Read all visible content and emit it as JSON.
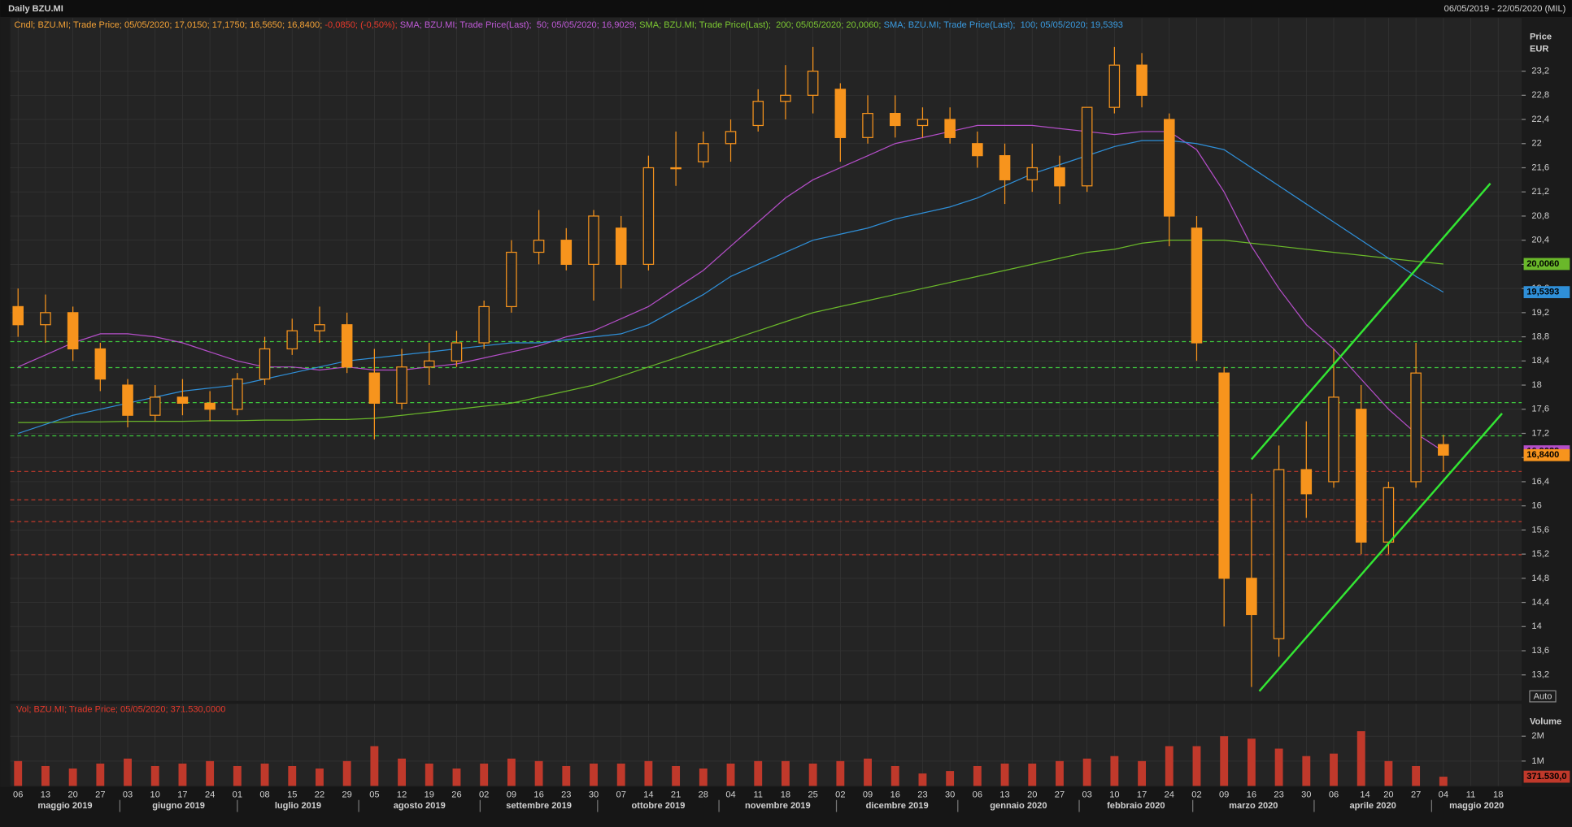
{
  "chart_data": [
    {
      "type": "candlestick",
      "title": "Daily BZU.MI",
      "subtitle": "06/05/2019 - 22/05/2020 (MIL)",
      "ylabel": "Price",
      "yunit": "EUR",
      "button": "Auto",
      "legend_segments": [
        {
          "text": "Cndl; BZU.MI; Trade Price; 05/05/2020; 17,0150; 17,1750; 16,5650; 16,8400; ",
          "color": "#f4a236"
        },
        {
          "text": "-0,0850; (-0,50%);",
          "color": "#e8392b"
        },
        {
          "text": " SMA; BZU.MI; Trade Price(Last);  50; 05/05/2020; 16,9029;",
          "color": "#c05ad8"
        },
        {
          "text": " SMA; BZU.MI; Trade Price(Last);  200; 05/05/2020; 20,0060;",
          "color": "#7cc832"
        },
        {
          "text": " SMA; BZU.MI; Trade Price(Last);  100; 05/05/2020; 19,5393",
          "color": "#3a9be0"
        }
      ],
      "x": [
        "2019-05-06",
        "2019-05-13",
        "2019-05-20",
        "2019-05-27",
        "2019-06-03",
        "2019-06-10",
        "2019-06-17",
        "2019-06-24",
        "2019-07-01",
        "2019-07-08",
        "2019-07-15",
        "2019-07-22",
        "2019-07-29",
        "2019-08-05",
        "2019-08-12",
        "2019-08-19",
        "2019-08-26",
        "2019-09-02",
        "2019-09-09",
        "2019-09-16",
        "2019-09-23",
        "2019-09-30",
        "2019-10-07",
        "2019-10-14",
        "2019-10-21",
        "2019-10-28",
        "2019-11-04",
        "2019-11-11",
        "2019-11-18",
        "2019-11-25",
        "2019-12-02",
        "2019-12-09",
        "2019-12-16",
        "2019-12-23",
        "2019-12-30",
        "2020-01-06",
        "2020-01-13",
        "2020-01-20",
        "2020-01-27",
        "2020-02-03",
        "2020-02-10",
        "2020-02-17",
        "2020-02-24",
        "2020-03-02",
        "2020-03-09",
        "2020-03-16",
        "2020-03-23",
        "2020-03-30",
        "2020-04-06",
        "2020-04-13",
        "2020-04-20",
        "2020-04-27",
        "2020-05-04"
      ],
      "open": [
        19.3,
        19.0,
        19.2,
        18.6,
        18.0,
        17.5,
        17.8,
        17.7,
        17.6,
        18.1,
        18.6,
        18.9,
        19.0,
        18.2,
        17.7,
        18.3,
        18.4,
        18.7,
        19.3,
        20.2,
        20.4,
        20.0,
        20.6,
        20.0,
        21.6,
        21.7,
        22.0,
        22.3,
        22.7,
        22.8,
        22.9,
        22.1,
        22.5,
        22.3,
        22.4,
        22.0,
        21.8,
        21.4,
        21.6,
        21.3,
        22.6,
        23.3,
        22.4,
        20.6,
        18.2,
        14.8,
        13.8,
        16.6,
        16.4,
        17.6,
        15.4,
        16.4,
        17.015
      ],
      "high": [
        19.6,
        19.5,
        19.3,
        18.7,
        18.1,
        18.0,
        18.1,
        17.9,
        18.2,
        18.8,
        19.1,
        19.3,
        19.2,
        18.6,
        18.6,
        18.7,
        18.9,
        19.4,
        20.4,
        20.9,
        20.6,
        20.9,
        20.8,
        21.8,
        22.2,
        22.2,
        22.4,
        22.9,
        23.3,
        23.6,
        23.0,
        22.8,
        22.8,
        22.6,
        22.6,
        22.2,
        22.0,
        22.0,
        21.8,
        22.6,
        23.6,
        23.5,
        22.5,
        20.8,
        18.3,
        16.2,
        17.0,
        17.4,
        18.6,
        18.0,
        16.4,
        18.7,
        17.175
      ],
      "low": [
        18.8,
        18.7,
        18.4,
        17.9,
        17.3,
        17.4,
        17.5,
        17.4,
        17.5,
        18.0,
        18.5,
        18.7,
        18.2,
        17.1,
        17.6,
        18.0,
        18.3,
        18.6,
        19.2,
        20.0,
        19.9,
        19.4,
        19.6,
        19.9,
        21.3,
        21.6,
        21.7,
        22.2,
        22.4,
        22.5,
        21.7,
        22.0,
        22.1,
        22.1,
        22.0,
        21.6,
        21.0,
        21.2,
        21.0,
        21.2,
        22.5,
        22.6,
        20.3,
        18.4,
        14.0,
        13.0,
        13.5,
        15.8,
        16.3,
        15.2,
        15.2,
        16.3,
        16.565
      ],
      "close": [
        19.0,
        19.2,
        18.6,
        18.1,
        17.5,
        17.8,
        17.7,
        17.6,
        18.1,
        18.6,
        18.9,
        19.0,
        18.3,
        17.7,
        18.3,
        18.4,
        18.7,
        19.3,
        20.2,
        20.4,
        20.0,
        20.8,
        20.0,
        21.6,
        21.6,
        22.0,
        22.2,
        22.7,
        22.8,
        23.2,
        22.1,
        22.5,
        22.3,
        22.4,
        22.1,
        21.8,
        21.4,
        21.6,
        21.3,
        22.6,
        23.3,
        22.8,
        20.8,
        18.7,
        14.8,
        14.2,
        16.6,
        16.2,
        17.8,
        15.4,
        16.3,
        18.2,
        16.84
      ],
      "color": "#f7941d",
      "close_label": "16,8400",
      "lines": [
        {
          "color": "#b44ec8",
          "value_label": "16,9029",
          "values": [
            18.3,
            18.5,
            18.7,
            18.85,
            18.85,
            18.8,
            18.7,
            18.55,
            18.4,
            18.3,
            18.3,
            18.25,
            18.3,
            18.25,
            18.25,
            18.3,
            18.35,
            18.45,
            18.55,
            18.65,
            18.8,
            18.9,
            19.1,
            19.3,
            19.6,
            19.9,
            20.3,
            20.7,
            21.1,
            21.4,
            21.6,
            21.8,
            22.0,
            22.1,
            22.2,
            22.3,
            22.3,
            22.3,
            22.25,
            22.2,
            22.15,
            22.2,
            22.2,
            21.9,
            21.2,
            20.3,
            19.6,
            19.0,
            18.6,
            18.1,
            17.6,
            17.2,
            16.9029
          ]
        },
        {
          "color": "#6ab82a",
          "value_label": "20,0060",
          "values": [
            17.38,
            17.38,
            17.39,
            17.39,
            17.4,
            17.4,
            17.4,
            17.41,
            17.41,
            17.42,
            17.42,
            17.43,
            17.43,
            17.45,
            17.5,
            17.55,
            17.6,
            17.65,
            17.7,
            17.8,
            17.9,
            18.0,
            18.15,
            18.3,
            18.45,
            18.6,
            18.75,
            18.9,
            19.05,
            19.2,
            19.3,
            19.4,
            19.5,
            19.6,
            19.7,
            19.8,
            19.9,
            20.0,
            20.1,
            20.2,
            20.25,
            20.35,
            20.4,
            20.4,
            20.4,
            20.35,
            20.3,
            20.25,
            20.2,
            20.15,
            20.1,
            20.05,
            20.006
          ]
        },
        {
          "color": "#2f8fd8",
          "value_label": "19,5393",
          "values": [
            17.2,
            17.35,
            17.5,
            17.6,
            17.7,
            17.8,
            17.9,
            17.95,
            18.0,
            18.1,
            18.2,
            18.3,
            18.4,
            18.45,
            18.5,
            18.55,
            18.6,
            18.65,
            18.7,
            18.7,
            18.75,
            18.8,
            18.85,
            19.0,
            19.25,
            19.5,
            19.8,
            20.0,
            20.2,
            20.4,
            20.5,
            20.6,
            20.75,
            20.85,
            20.95,
            21.1,
            21.3,
            21.5,
            21.65,
            21.8,
            21.95,
            22.05,
            22.05,
            22.0,
            21.9,
            21.6,
            21.3,
            21.0,
            20.7,
            20.4,
            20.1,
            19.8,
            19.5393
          ]
        }
      ],
      "hlines": [
        {
          "value": 18.72,
          "color": "#3ec83e"
        },
        {
          "value": 18.29,
          "color": "#3ec83e"
        },
        {
          "value": 17.71,
          "color": "#3ec83e"
        },
        {
          "value": 17.16,
          "color": "#3ec83e"
        },
        {
          "value": 16.57,
          "color": "#c0392b"
        },
        {
          "value": 16.1,
          "color": "#c0392b"
        },
        {
          "value": 15.74,
          "color": "#c0392b"
        },
        {
          "value": 15.19,
          "color": "#c0392b"
        }
      ],
      "trendlines": [
        {
          "color": "#33e633",
          "x": [
            "2020-03-16",
            "2020-05-16"
          ],
          "y": [
            16.77,
            21.34
          ]
        },
        {
          "color": "#33e633",
          "x": [
            "2020-03-18",
            "2020-05-19"
          ],
          "y": [
            12.93,
            17.53
          ]
        }
      ],
      "xlim": [
        "2019-05-04",
        "2020-05-24"
      ],
      "ylim": [
        12.77,
        24.08
      ],
      "grid": true,
      "yticks": [
        {
          "value": 13.2,
          "label": "13,2"
        },
        {
          "value": 13.6,
          "label": "13,6"
        },
        14,
        {
          "value": 14.4,
          "label": "14,4"
        },
        {
          "value": 14.8,
          "label": "14,8"
        },
        {
          "value": 15.2,
          "label": "15,2"
        },
        {
          "value": 15.6,
          "label": "15,6"
        },
        16,
        {
          "value": 16.4,
          "label": "16,4"
        },
        {
          "value": 16.8,
          "label": "16,8"
        },
        {
          "value": 17.2,
          "label": "17,2"
        },
        {
          "value": 17.6,
          "label": "17,6"
        },
        18,
        {
          "value": 18.4,
          "label": "18,4"
        },
        {
          "value": 18.8,
          "label": "18,8"
        },
        {
          "value": 19.2,
          "label": "19,2"
        },
        {
          "value": 19.6,
          "label": "19,6"
        },
        20,
        {
          "value": 20.4,
          "label": "20,4"
        },
        {
          "value": 20.8,
          "label": "20,8"
        },
        {
          "value": 21.2,
          "label": "21,2"
        },
        {
          "value": 21.6,
          "label": "21,6"
        },
        22,
        {
          "value": 22.4,
          "label": "22,4"
        },
        {
          "value": 22.8,
          "label": "22,8"
        },
        {
          "value": 23.2,
          "label": "23,2"
        }
      ],
      "xticks": [
        {
          "value": "2019-05-06",
          "label": "06"
        },
        {
          "value": "2019-05-13",
          "label": "13"
        },
        {
          "value": "2019-05-20",
          "label": "20"
        },
        {
          "value": "2019-05-27",
          "label": "27"
        },
        {
          "value": "2019-06-03",
          "label": "03"
        },
        {
          "value": "2019-06-10",
          "label": "10"
        },
        {
          "value": "2019-06-17",
          "label": "17"
        },
        {
          "value": "2019-06-24",
          "label": "24"
        },
        {
          "value": "2019-07-01",
          "label": "01"
        },
        {
          "value": "2019-07-08",
          "label": "08"
        },
        {
          "value": "2019-07-15",
          "label": "15"
        },
        {
          "value": "2019-07-22",
          "label": "22"
        },
        {
          "value": "2019-07-29",
          "label": "29"
        },
        {
          "value": "2019-08-05",
          "label": "05"
        },
        {
          "value": "2019-08-12",
          "label": "12"
        },
        {
          "value": "2019-08-19",
          "label": "19"
        },
        {
          "value": "2019-08-26",
          "label": "26"
        },
        {
          "value": "2019-09-02",
          "label": "02"
        },
        {
          "value": "2019-09-09",
          "label": "09"
        },
        {
          "value": "2019-09-16",
          "label": "16"
        },
        {
          "value": "2019-09-23",
          "label": "23"
        },
        {
          "value": "2019-09-30",
          "label": "30"
        },
        {
          "value": "2019-10-07",
          "label": "07"
        },
        {
          "value": "2019-10-14",
          "label": "14"
        },
        {
          "value": "2019-10-21",
          "label": "21"
        },
        {
          "value": "2019-10-28",
          "label": "28"
        },
        {
          "value": "2019-11-04",
          "label": "04"
        },
        {
          "value": "2019-11-11",
          "label": "11"
        },
        {
          "value": "2019-11-18",
          "label": "18"
        },
        {
          "value": "2019-11-25",
          "label": "25"
        },
        {
          "value": "2019-12-02",
          "label": "02"
        },
        {
          "value": "2019-12-09",
          "label": "09"
        },
        {
          "value": "2019-12-16",
          "label": "16"
        },
        {
          "value": "2019-12-23",
          "label": "23"
        },
        {
          "value": "2019-12-30",
          "label": "30"
        },
        {
          "value": "2020-01-06",
          "label": "06"
        },
        {
          "value": "2020-01-13",
          "label": "13"
        },
        {
          "value": "2020-01-20",
          "label": "20"
        },
        {
          "value": "2020-01-27",
          "label": "27"
        },
        {
          "value": "2020-02-03",
          "label": "03"
        },
        {
          "value": "2020-02-10",
          "label": "10"
        },
        {
          "value": "2020-02-17",
          "label": "17"
        },
        {
          "value": "2020-02-24",
          "label": "24"
        },
        {
          "value": "2020-03-02",
          "label": "02"
        },
        {
          "value": "2020-03-09",
          "label": "09"
        },
        {
          "value": "2020-03-16",
          "label": "16"
        },
        {
          "value": "2020-03-23",
          "label": "23"
        },
        {
          "value": "2020-03-30",
          "label": "30"
        },
        {
          "value": "2020-04-06",
          "label": "06"
        },
        {
          "value": "2020-04-14",
          "label": "14"
        },
        {
          "value": "2020-04-20",
          "label": "20"
        },
        {
          "value": "2020-04-27",
          "label": "27"
        },
        {
          "value": "2020-05-04",
          "label": "04"
        },
        {
          "value": "2020-05-11",
          "label": "11"
        },
        {
          "value": "2020-05-18",
          "label": "18"
        }
      ],
      "month_ticks": [
        {
          "value": "2019-05-01",
          "label": "maggio 2019"
        },
        {
          "value": "2019-06-01",
          "label": "giugno 2019"
        },
        {
          "value": "2019-07-01",
          "label": "luglio 2019"
        },
        {
          "value": "2019-08-01",
          "label": "agosto 2019"
        },
        {
          "value": "2019-09-01",
          "label": "settembre 2019"
        },
        {
          "value": "2019-10-01",
          "label": "ottobre 2019"
        },
        {
          "value": "2019-11-01",
          "label": "novembre 2019"
        },
        {
          "value": "2019-12-01",
          "label": "dicembre 2019"
        },
        {
          "value": "2020-01-01",
          "label": "gennaio 2020"
        },
        {
          "value": "2020-02-01",
          "label": "febbraio 2020"
        },
        {
          "value": "2020-03-01",
          "label": "marzo 2020"
        },
        {
          "value": "2020-04-01",
          "label": "aprile 2020"
        },
        {
          "value": "2020-05-01",
          "label": "maggio 2020"
        }
      ]
    },
    {
      "type": "bar",
      "legend": "Vol; BZU.MI; Trade Price; 05/05/2020; 371.530,0000",
      "legend_color": "#e8392b",
      "ylabel": "Volume",
      "color": "#c0392b",
      "value_label": "371.530,0",
      "x": [
        "2019-05-06",
        "2019-05-13",
        "2019-05-20",
        "2019-05-27",
        "2019-06-03",
        "2019-06-10",
        "2019-06-17",
        "2019-06-24",
        "2019-07-01",
        "2019-07-08",
        "2019-07-15",
        "2019-07-22",
        "2019-07-29",
        "2019-08-05",
        "2019-08-12",
        "2019-08-19",
        "2019-08-26",
        "2019-09-02",
        "2019-09-09",
        "2019-09-16",
        "2019-09-23",
        "2019-09-30",
        "2019-10-07",
        "2019-10-14",
        "2019-10-21",
        "2019-10-28",
        "2019-11-04",
        "2019-11-11",
        "2019-11-18",
        "2019-11-25",
        "2019-12-02",
        "2019-12-09",
        "2019-12-16",
        "2019-12-23",
        "2019-12-30",
        "2020-01-06",
        "2020-01-13",
        "2020-01-20",
        "2020-01-27",
        "2020-02-03",
        "2020-02-10",
        "2020-02-17",
        "2020-02-24",
        "2020-03-02",
        "2020-03-09",
        "2020-03-16",
        "2020-03-23",
        "2020-03-30",
        "2020-04-06",
        "2020-04-13",
        "2020-04-20",
        "2020-04-27",
        "2020-05-04"
      ],
      "values": [
        1000000,
        800000,
        700000,
        900000,
        1100000,
        800000,
        900000,
        1000000,
        800000,
        900000,
        800000,
        700000,
        1000000,
        1600000,
        1100000,
        900000,
        700000,
        900000,
        1100000,
        1000000,
        800000,
        900000,
        900000,
        1000000,
        800000,
        700000,
        900000,
        1000000,
        1000000,
        900000,
        1000000,
        1100000,
        800000,
        500000,
        600000,
        800000,
        900000,
        900000,
        1000000,
        1100000,
        1200000,
        1000000,
        1600000,
        1600000,
        2000000,
        1900000,
        1500000,
        1200000,
        1300000,
        2200000,
        1000000,
        800000,
        371530
      ],
      "xlim": [
        "2019-05-04",
        "2020-05-24"
      ],
      "ylim": [
        0,
        3300000
      ],
      "yticks": [
        {
          "value": 1000000,
          "label": "1M"
        },
        {
          "value": 2000000,
          "label": "2M"
        }
      ]
    }
  ]
}
